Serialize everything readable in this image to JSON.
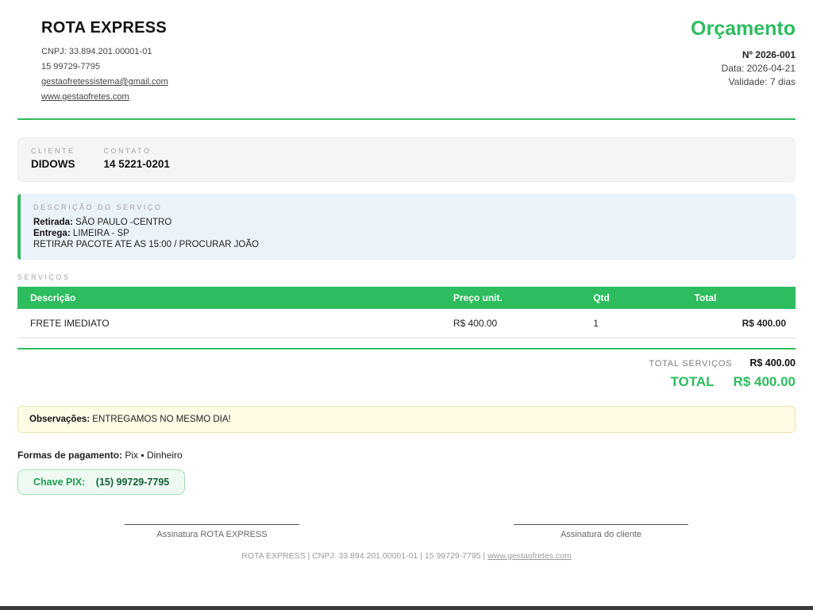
{
  "company": {
    "name": "ROTA EXPRESS",
    "cnpj": "CNPJ: 33.894.201.00001-01",
    "phone": "15 99729-7795",
    "email": "gestaofretessistema@gmail.com",
    "website": "www.gestaofretes.com"
  },
  "document": {
    "title": "Orçamento",
    "number": "Nº 2026-001",
    "date": "Data: 2026-04-21",
    "validity": "Validade: 7 dias"
  },
  "client": {
    "label": "CLIENTE",
    "name": "DIDOWS",
    "contact_label": "CONTATO",
    "contact": "14 5221-0201"
  },
  "service_description": {
    "label": "DESCRIÇÃO DO SERVIÇO",
    "pickup_label": "Retirada:",
    "pickup": "SÃO PAULO -CENTRO",
    "delivery_label": "Entrega:",
    "delivery": "LIMEIRA - SP",
    "note": "RETIRAR PACOTE ATE AS 15:00 / PROCURAR JOÃO"
  },
  "services": {
    "label": "SERVIÇOS",
    "columns": [
      "Descrição",
      "Preço unit.",
      "Qtd",
      "Total"
    ],
    "rows": [
      [
        "FRETE IMEDIATO",
        "R$ 400.00",
        "1",
        "R$ 400.00"
      ]
    ]
  },
  "totals": {
    "services_label": "TOTAL SERVIÇOS",
    "services_value": "R$ 400.00",
    "total_label": "TOTAL",
    "total_value": "R$ 400.00"
  },
  "observations": {
    "label": "Observações:",
    "text": "ENTREGAMOS NO MESMO DIA!"
  },
  "payment": {
    "label": "Formas de pagamento:",
    "methods": "Pix ▪ Dinheiro",
    "pix_label": "Chave PIX:",
    "pix_key": "(15) 99729-7795"
  },
  "signatures": {
    "company": "Assinatura ROTA EXPRESS",
    "client": "Assinatura do cliente"
  },
  "footer": {
    "text_before": "ROTA EXPRESS | CNPJ: 33.894.201.00001-01 | 15 99729-7795 | ",
    "link": "www.gestaofretes.com"
  },
  "colors": {
    "accent_green": "#2dbd5f",
    "description_box_bg": "#eaf2fa",
    "observations_bg": "#fffbe5",
    "pix_box_bg": "#effbf2",
    "window_edge": "#3c3c3c"
  }
}
